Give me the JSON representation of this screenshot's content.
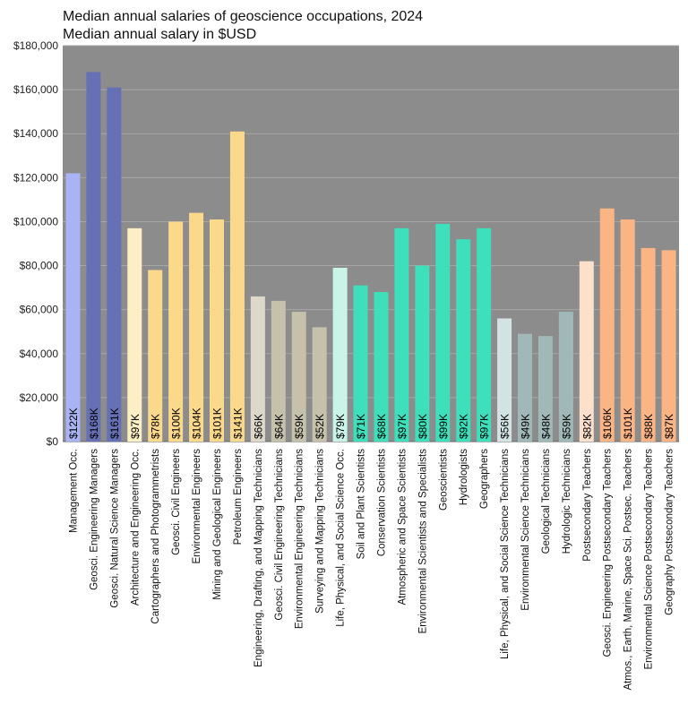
{
  "chart_data": {
    "type": "bar",
    "title": "Median annual salaries of geoscience occupations, 2024",
    "subtitle": "Median annual salary in $USD",
    "xlabel": "",
    "ylabel": "",
    "ylim": [
      0,
      180000
    ],
    "yticks": [
      0,
      20000,
      40000,
      60000,
      80000,
      100000,
      120000,
      140000,
      160000,
      180000
    ],
    "ytick_labels": [
      "$0",
      "$20,000",
      "$40,000",
      "$60,000",
      "$80,000",
      "$100,000",
      "$120,000",
      "$140,000",
      "$160,000",
      "$180,000"
    ],
    "grid": true,
    "plot_background": "#8c8c8c",
    "categories": [
      "Management Occ.",
      "Geosci. Engineering Managers",
      "Geosci. Natural Science Managers",
      "Architecture and Engineering Occ.",
      "Cartographers and Photogrammetrists",
      "Geosci. Civil Engineers",
      "Environmental Engineers",
      "Mining and Geological Engineers",
      "Petroleum Engineers",
      "Engineering, Drafting, and Mapping Technicians",
      "Geosci. Civil Engineering Technicians",
      "Environmental Engineering Technicians",
      "Surveying and Mapping Technicians",
      "Life, Physical, and Social Science Occ.",
      "Soil and Plant Scientists",
      "Conservation Scientists",
      "Atmospheric and Space Scientists",
      "Environmental Scientists and Specialists",
      "Geoscientists",
      "Hydrologists",
      "Geographers",
      "Life, Physical, and Social Science Technicians",
      "Environmental Science Technicians",
      "Geological Technicians",
      "Hydrologic Technicians",
      "Postsecondary Teachers",
      "Geosci. Engineering Postsecondary Teachers",
      "Atmos., Earth, Marine, Space Sci. Postsec. Teachers",
      "Environmental Science Postsecondary Teachers",
      "Geography Postsecondary Teachers"
    ],
    "values": [
      122000,
      168000,
      161000,
      97000,
      78000,
      100000,
      104000,
      101000,
      141000,
      66000,
      64000,
      59000,
      52000,
      79000,
      71000,
      68000,
      97000,
      80000,
      99000,
      92000,
      97000,
      56000,
      49000,
      48000,
      59000,
      82000,
      106000,
      101000,
      88000,
      87000
    ],
    "data_labels": [
      "$122K",
      "$168K",
      "$161K",
      "$97K",
      "$78K",
      "$100K",
      "$104K",
      "$101K",
      "$141K",
      "$66K",
      "$64K",
      "$59K",
      "$52K",
      "$79K",
      "$71K",
      "$68K",
      "$97K",
      "$80K",
      "$99K",
      "$92K",
      "$97K",
      "$56K",
      "$49K",
      "$48K",
      "$59K",
      "$82K",
      "$106K",
      "$101K",
      "$88K",
      "$87K"
    ],
    "colors": [
      "#aab4f5",
      "#6570b5",
      "#6570b5",
      "#fdefc4",
      "#fbd98a",
      "#fbd98a",
      "#fbd98a",
      "#fbd98a",
      "#fbd98a",
      "#ddd8c9",
      "#c6c1ab",
      "#c6c1ab",
      "#c6c1ab",
      "#c8f5e8",
      "#3de0ba",
      "#3de0ba",
      "#3de0ba",
      "#3de0ba",
      "#3de0ba",
      "#3de0ba",
      "#3de0ba",
      "#d3e2e2",
      "#a0b8b8",
      "#a0b8b8",
      "#a0b8b8",
      "#fde0cc",
      "#fbb584",
      "#fbb584",
      "#fbb584",
      "#fbb584"
    ]
  }
}
